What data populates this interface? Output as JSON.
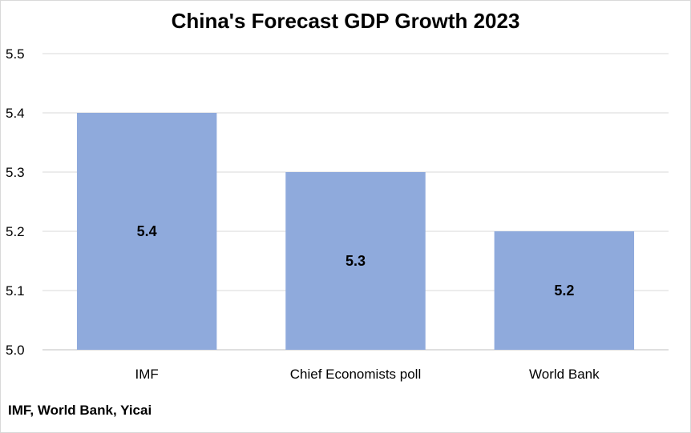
{
  "chart_data": {
    "type": "bar",
    "title": "China's Forecast GDP Growth 2023",
    "categories": [
      "IMF",
      "Chief Economists poll",
      "World Bank"
    ],
    "values": [
      5.4,
      5.3,
      5.2
    ],
    "data_labels": [
      "5.4",
      "5.3",
      "5.2"
    ],
    "yticks": [
      "5.0",
      "5.1",
      "5.2",
      "5.3",
      "5.4",
      "5.5"
    ],
    "ylim": [
      5.0,
      5.5
    ],
    "grid": true,
    "legend": "none",
    "xlabel": "",
    "ylabel": "",
    "bar_color": "#8faadc",
    "source": "IMF, World Bank, Yicai"
  }
}
